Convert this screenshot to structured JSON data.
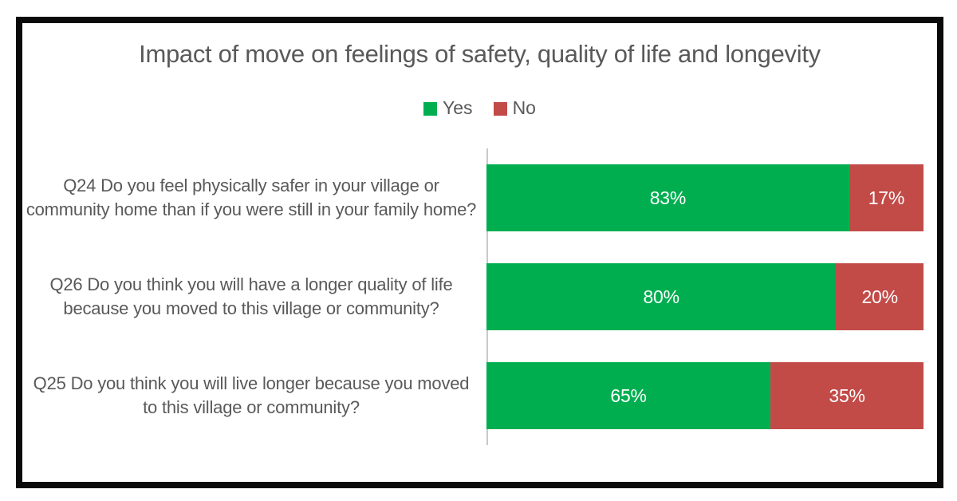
{
  "chart_data": {
    "type": "bar",
    "orientation": "horizontal",
    "stacked": true,
    "title": "Impact of move on feelings of safety, quality of life and longevity",
    "categories": [
      "Q24 Do you feel physically safer in your village or community home than if you were still in your family home?",
      "Q26 Do you think you will have a longer quality of life because you moved to this village or community?",
      "Q25 Do you think you will live longer because you moved to this village or community?"
    ],
    "series": [
      {
        "name": "Yes",
        "color": "#00AE50",
        "values": [
          83,
          80,
          65
        ]
      },
      {
        "name": "No",
        "color": "#C24B48",
        "values": [
          17,
          20,
          35
        ]
      }
    ],
    "data_labels": {
      "format": "percent",
      "color": "#ffffff",
      "values": [
        [
          "83%",
          "17%"
        ],
        [
          "80%",
          "20%"
        ],
        [
          "65%",
          "35%"
        ]
      ]
    },
    "xlim": [
      0,
      100
    ],
    "legend_position": "top",
    "grid": false
  },
  "styles": {
    "title_color": "#595959",
    "category_text_color": "#595959",
    "legend_text_color": "#595959",
    "axis_line_color": "#c9c9c9",
    "frame_border_color": "#0a0a0a",
    "background": "#ffffff"
  }
}
